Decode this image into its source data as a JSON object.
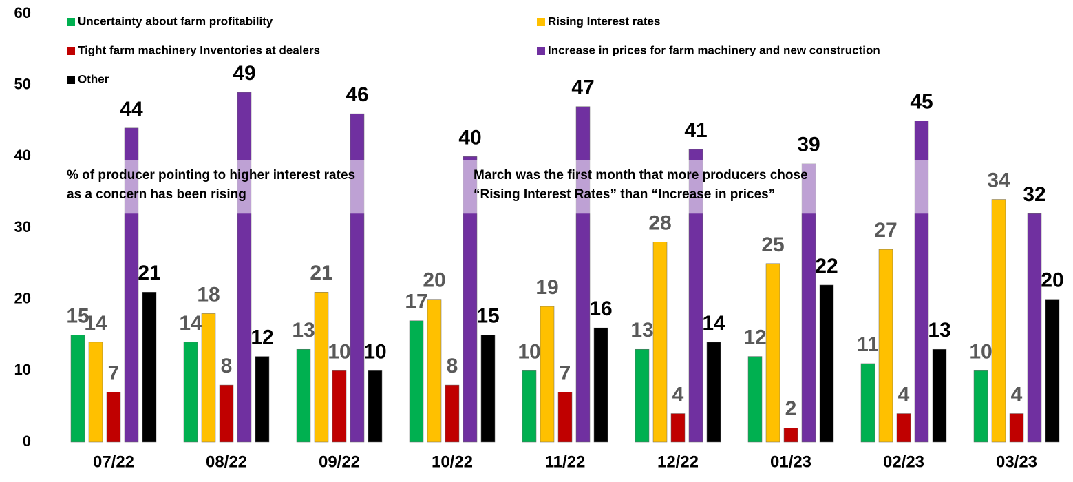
{
  "chart_data": {
    "type": "bar",
    "categories": [
      "07/22",
      "08/22",
      "09/22",
      "10/22",
      "11/22",
      "12/22",
      "01/23",
      "02/23",
      "03/23"
    ],
    "series": [
      {
        "name": "Uncertainty about farm profitability",
        "color": "#00b050",
        "label_color": "#595959",
        "values": [
          15,
          14,
          13,
          17,
          10,
          13,
          12,
          11,
          10
        ]
      },
      {
        "name": "Rising Interest rates",
        "color": "#ffc000",
        "label_color": "#595959",
        "values": [
          14,
          18,
          21,
          20,
          19,
          28,
          25,
          27,
          34
        ]
      },
      {
        "name": "Tight farm machinery Inventories at dealers",
        "color": "#c00000",
        "label_color": "#595959",
        "values": [
          7,
          8,
          10,
          8,
          7,
          4,
          2,
          4,
          4
        ]
      },
      {
        "name": "Increase in prices for farm machinery and new construction",
        "color": "#7030a0",
        "label_color": "#000000",
        "values": [
          44,
          49,
          46,
          40,
          47,
          41,
          39,
          45,
          32
        ]
      },
      {
        "name": "Other",
        "color": "#000000",
        "label_color": "#000000",
        "values": [
          21,
          12,
          10,
          15,
          16,
          14,
          22,
          13,
          20
        ]
      }
    ],
    "annotations": [
      [
        "% of producer pointing to higher interest rates",
        "as a concern has been rising"
      ],
      [
        "March was the first month that more producers chose",
        "“Rising Interest Rates” than “Increase in prices”"
      ]
    ],
    "ylim": [
      0,
      60
    ],
    "yticks": [
      0,
      10,
      20,
      30,
      40,
      50,
      60
    ],
    "grid": false
  }
}
